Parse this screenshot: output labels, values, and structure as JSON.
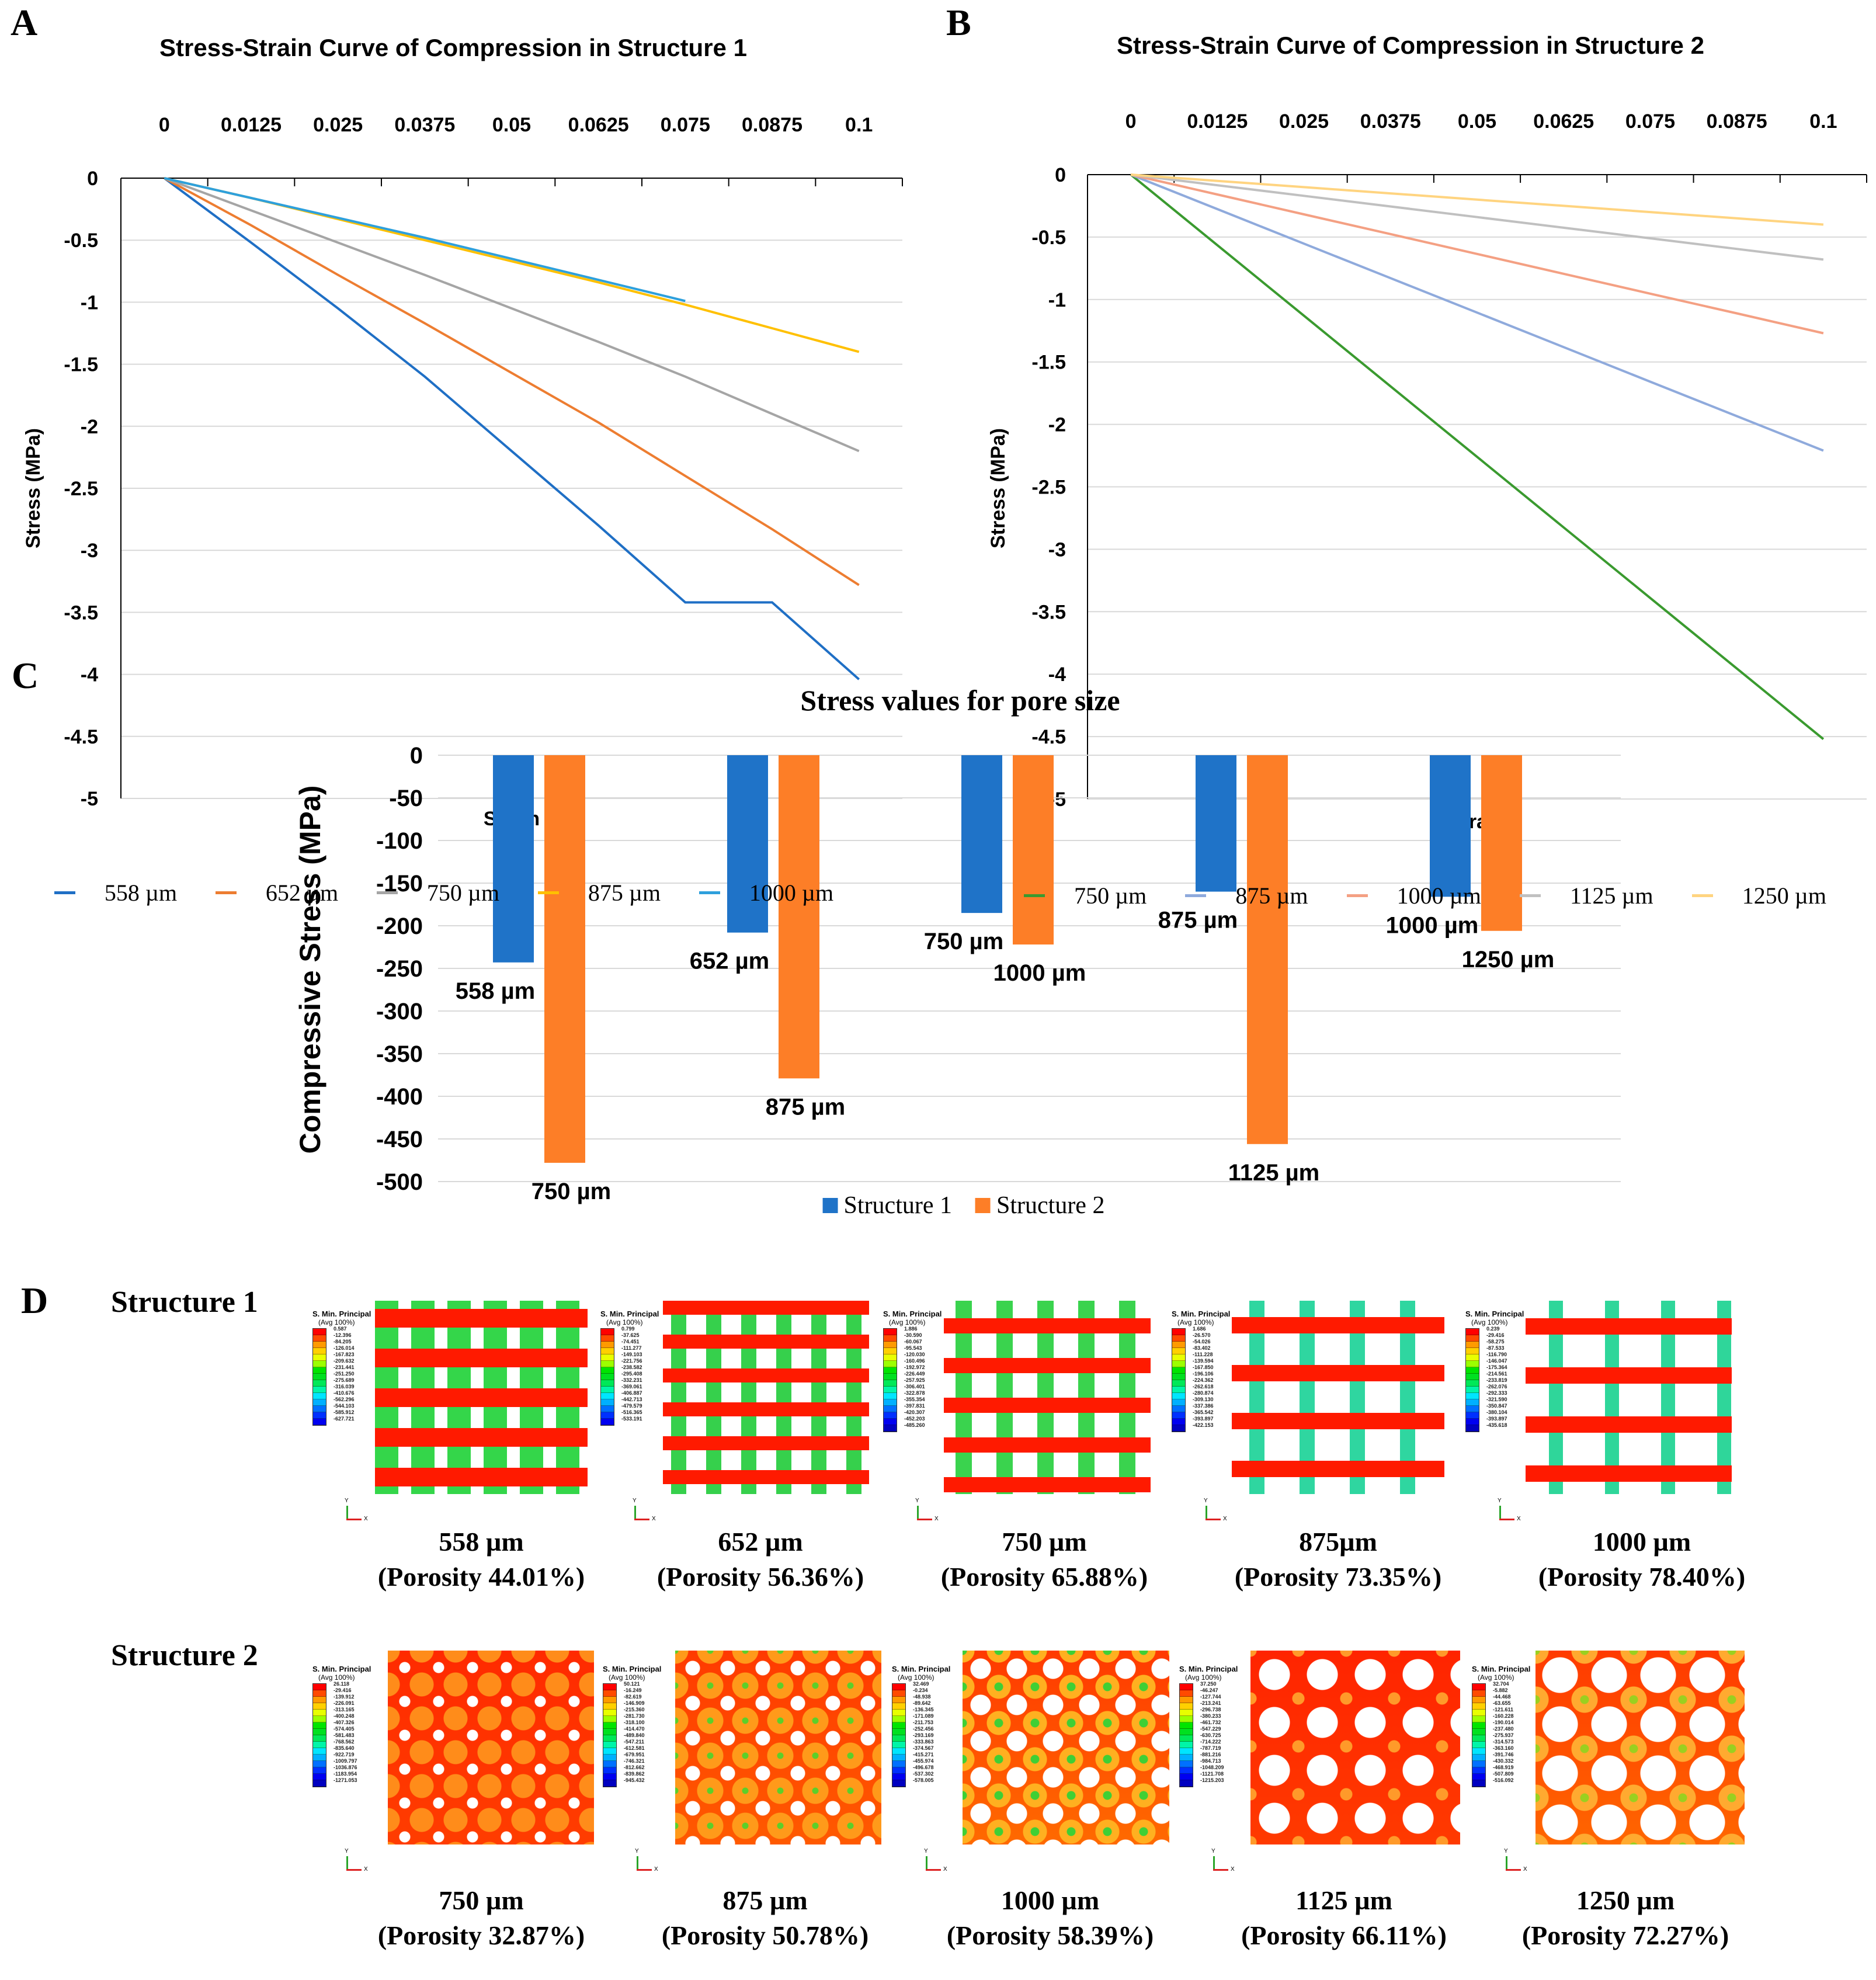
{
  "panels": {
    "a": "A",
    "b": "B",
    "c": "C",
    "d": "D"
  },
  "chart_data": [
    {
      "type": "line",
      "title": "Stress-Strain Curve of Compression in Structure 1",
      "xlabel": "Strain",
      "ylabel": "Stress (MPa)",
      "x_ticks": [
        "0",
        "0.0125",
        "0.025",
        "0.0375",
        "0.05",
        "0.0625",
        "0.075",
        "0.0875",
        "0.1"
      ],
      "y_ticks": [
        "0",
        "-0.5",
        "-1",
        "-1.5",
        "-2",
        "-2.5",
        "-3",
        "-3.5",
        "-4",
        "-4.5",
        "-5"
      ],
      "ylim": [
        -5,
        0
      ],
      "x_axis_position": "top",
      "grid": true,
      "legend_position": "bottom",
      "series": [
        {
          "name": "558 µm",
          "color": "#1f6fc5",
          "values": [
            0,
            -0.52,
            -1.05,
            -1.6,
            -2.2,
            -2.8,
            -3.42,
            -3.42,
            -4.04
          ]
        },
        {
          "name": "652 µm",
          "color": "#ed7d31",
          "values": [
            0,
            -0.38,
            -0.78,
            -1.17,
            -1.57,
            -1.97,
            -2.4,
            -2.83,
            -3.28
          ]
        },
        {
          "name": "750 µm",
          "color": "#a5a5a5",
          "values": [
            0,
            -0.26,
            -0.52,
            -0.78,
            -1.05,
            -1.32,
            -1.6,
            -1.9,
            -2.2
          ]
        },
        {
          "name": "875 µm",
          "color": "#ffc000",
          "values": [
            0,
            -0.16,
            -0.33,
            -0.5,
            -0.67,
            -0.84,
            -1.02,
            -1.21,
            -1.4
          ]
        },
        {
          "name": "1000 µm",
          "color": "#2ea0dc",
          "values": [
            0,
            -0.16,
            -0.32,
            -0.48,
            -0.65,
            -0.82,
            -0.99,
            null,
            null
          ]
        }
      ]
    },
    {
      "type": "line",
      "title": "Stress-Strain Curve of Compression in Structure 2",
      "xlabel": "Strain",
      "ylabel": "Stress (MPa)",
      "x_ticks": [
        "0",
        "0.0125",
        "0.025",
        "0.0375",
        "0.05",
        "0.0625",
        "0.075",
        "0.0875",
        "0.1"
      ],
      "y_ticks": [
        "0",
        "-0.5",
        "-1",
        "-1.5",
        "-2",
        "-2.5",
        "-3",
        "-3.5",
        "-4",
        "-4.5",
        "-5"
      ],
      "ylim": [
        -5,
        0
      ],
      "x_axis_position": "top",
      "grid": true,
      "legend_position": "bottom",
      "series": [
        {
          "name": "750 µm",
          "color": "#3a9a2f",
          "values": [
            0,
            -0.565,
            -1.13,
            -1.695,
            -2.26,
            -2.825,
            -3.39,
            -3.955,
            -4.52
          ]
        },
        {
          "name": "875 µm",
          "color": "#8faadc",
          "values": [
            0,
            -0.276,
            -0.553,
            -0.829,
            -1.105,
            -1.381,
            -1.658,
            -1.934,
            -2.21
          ]
        },
        {
          "name": "1000 µm",
          "color": "#f4a083",
          "values": [
            0,
            -0.159,
            -0.318,
            -0.476,
            -0.635,
            -0.794,
            -0.953,
            -1.111,
            -1.27
          ]
        },
        {
          "name": "1125 µm",
          "color": "#c0c0c0",
          "values": [
            0,
            -0.085,
            -0.17,
            -0.255,
            -0.34,
            -0.425,
            -0.51,
            -0.595,
            -0.68
          ]
        },
        {
          "name": "1250 µm",
          "color": "#ffd480",
          "values": [
            0,
            -0.05,
            -0.1,
            -0.15,
            -0.2,
            -0.25,
            -0.3,
            -0.35,
            -0.4
          ]
        }
      ]
    },
    {
      "type": "bar",
      "title": "Stress values for pore size",
      "ylabel": "Compressive Stress (MPa)",
      "y_ticks": [
        "0",
        "-50",
        "-100",
        "-150",
        "-200",
        "-250",
        "-300",
        "-350",
        "-400",
        "-450",
        "-500"
      ],
      "ylim": [
        -500,
        0
      ],
      "grid": true,
      "legend_position": "bottom",
      "series": [
        {
          "name": "Structure 1",
          "color": "#1f73c8",
          "labels": [
            "558 µm",
            "652 µm",
            "750 µm",
            "875 µm",
            "1000 µm"
          ],
          "values": [
            -243,
            -208,
            -185,
            -160,
            -166
          ]
        },
        {
          "name": "Structure 2",
          "color": "#fd7e27",
          "labels": [
            "750 µm",
            "875 µm",
            "1000 µm",
            "1125 µm",
            "1250 µm"
          ],
          "values": [
            -478,
            -379,
            -222,
            -456,
            -206
          ]
        }
      ]
    }
  ],
  "fe_results": {
    "legend_title": "S. Min. Principal",
    "legend_subtitle": "(Avg 100%)",
    "axis_triad": {
      "y": "Y",
      "x": "X"
    },
    "rows": [
      {
        "label": "Structure 1",
        "items": [
          {
            "size": "558 µm",
            "porosity": "(Porosity 44.01%)",
            "legend": [
              "0.587",
              "-12.396",
              "-84.205",
              "-126.014",
              "-167.823",
              "-209.632",
              "-231.441",
              "-251.250",
              "-275.689",
              "-316.039",
              "-410.676",
              "-562.296",
              "-544.103",
              "-585.912",
              "-627.721"
            ]
          },
          {
            "size": "652 µm",
            "porosity": "(Porosity 56.36%)",
            "legend": [
              "0.799",
              "-37.625",
              "-74.451",
              "-111.277",
              "-149.103",
              "-221.756",
              "-238.582",
              "-295.408",
              "-332.231",
              "-369.061",
              "-406.887",
              "-442.713",
              "-479.579",
              "-516.365",
              "-533.191"
            ]
          },
          {
            "size": "750 µm",
            "porosity": "(Porosity 65.88%)",
            "legend": [
              "1.886",
              "-30.590",
              "-60.067",
              "-95.543",
              "-120.030",
              "-160.496",
              "-192.972",
              "-226.449",
              "-257.925",
              "-306.401",
              "-322.878",
              "-355.354",
              "-397.831",
              "-420.307",
              "-452.203",
              "-485.260"
            ]
          },
          {
            "size": "875µm",
            "porosity": "(Porosity 73.35%)",
            "legend": [
              "1.686",
              "-26.570",
              "-54.026",
              "-83.402",
              "-111.228",
              "-139.594",
              "-167.850",
              "-196.106",
              "-224.362",
              "-262.618",
              "-280.874",
              "-309.130",
              "-337.386",
              "-365.542",
              "-393.897",
              "-422.153"
            ]
          },
          {
            "size": "1000 µm",
            "porosity": "(Porosity 78.40%)",
            "legend": [
              "0.239",
              "-29.416",
              "-58.275",
              "-87.533",
              "-116.790",
              "-146.047",
              "-175.364",
              "-214.561",
              "-233.819",
              "-262.076",
              "-292.333",
              "-321.590",
              "-350.847",
              "-380.104",
              "-393.897",
              "-435.618"
            ]
          }
        ]
      },
      {
        "label": "Structure 2",
        "items": [
          {
            "size": "750 µm",
            "porosity": "(Porosity 32.87%)",
            "legend": [
              "26.118",
              "-29.416",
              "-139.912",
              "-226.091",
              "-313.165",
              "-400.248",
              "-407.326",
              "-574.405",
              "-581.483",
              "-768.562",
              "-835.640",
              "-922.719",
              "-1009.797",
              "-1036.876",
              "-1183.954",
              "-1271.053"
            ]
          },
          {
            "size": "875 µm",
            "porosity": "(Porosity 50.78%)",
            "legend": [
              "50.121",
              "-16.249",
              "-82.619",
              "-146.909",
              "-215.360",
              "-281.730",
              "-318.100",
              "-414.470",
              "-489.840",
              "-547.211",
              "-612.581",
              "-679.951",
              "-746.321",
              "-812.662",
              "-839.862",
              "-945.432"
            ]
          },
          {
            "size": "1000 µm",
            "porosity": "(Porosity 58.39%)",
            "legend": [
              "32.469",
              "-0.234",
              "-48.938",
              "-89.642",
              "-136.345",
              "-171.089",
              "-211.753",
              "-252.456",
              "-293.169",
              "-333.863",
              "-374.567",
              "-415.271",
              "-455.974",
              "-496.678",
              "-537.302",
              "-578.005"
            ]
          },
          {
            "size": "1125 µm",
            "porosity": "(Porosity 66.11%)",
            "legend": [
              "37.250",
              "-46.247",
              "-127.744",
              "-213.241",
              "-296.738",
              "-380.233",
              "-461.732",
              "-547.229",
              "-630.725",
              "-714.222",
              "-787.719",
              "-881.216",
              "-984.713",
              "-1048.209",
              "-1121.708",
              "-1215.203"
            ]
          },
          {
            "size": "1250 µm",
            "porosity": "(Porosity 72.27%)",
            "legend": [
              "32.704",
              "-5.882",
              "-44.468",
              "-63.655",
              "-121.611",
              "-160.228",
              "-190.014",
              "-237.480",
              "-275.937",
              "-314.573",
              "-363.160",
              "-391.746",
              "-430.332",
              "-468.919",
              "-507.809",
              "-516.092"
            ]
          }
        ]
      }
    ]
  }
}
